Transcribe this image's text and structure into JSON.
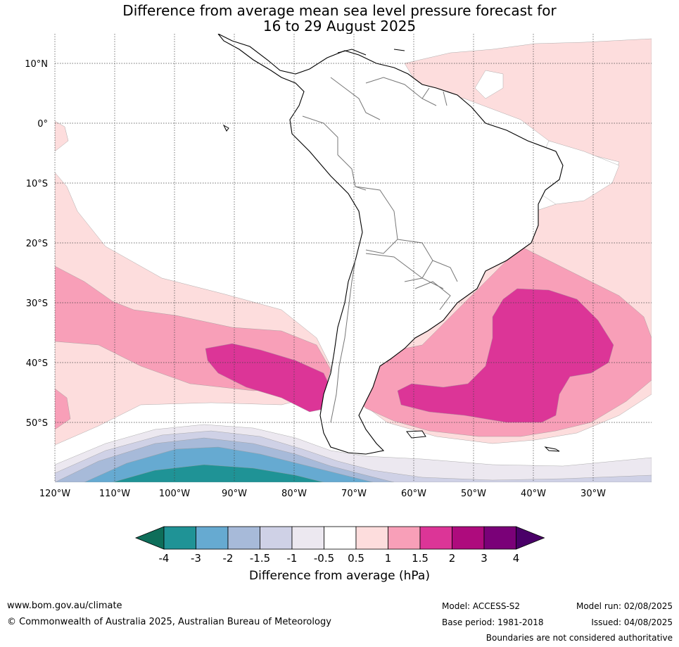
{
  "title_line1": "Difference from average mean sea level pressure forecast for",
  "title_line2": "16 to 29 August 2025",
  "lat_labels": [
    "10°N",
    "0°",
    "10°S",
    "20°S",
    "30°S",
    "40°S",
    "50°S"
  ],
  "lon_labels": [
    "120°W",
    "110°W",
    "100°W",
    "90°W",
    "80°W",
    "70°W",
    "60°W",
    "50°W",
    "40°W",
    "30°W"
  ],
  "colorbar": {
    "ticks": [
      "-4",
      "-3",
      "-2",
      "-1.5",
      "-1",
      "-0.5",
      "0.5",
      "1",
      "1.5",
      "2",
      "3",
      "4"
    ],
    "colors": [
      "#0e6e5a",
      "#1f9396",
      "#66aad1",
      "#a7bad9",
      "#cfd1e6",
      "#ece8f0",
      "#ffffff",
      "#fddddd",
      "#f89fb8",
      "#dc3597",
      "#ae0b7d",
      "#7a0178",
      "#4a0068"
    ],
    "label": "Difference from average (hPa)"
  },
  "footer": {
    "url": "www.bom.gov.au/climate",
    "copyright": "© Commonwealth of Australia 2025, Australian Bureau of Meteorology",
    "model": "Model: ACCESS-S2",
    "base_period": "Base period: 1981-2018",
    "model_run": "Model run: 02/08/2025",
    "issued": "Issued: 04/08/2025",
    "disclaimer": "Boundaries are not considered authoritative"
  }
}
